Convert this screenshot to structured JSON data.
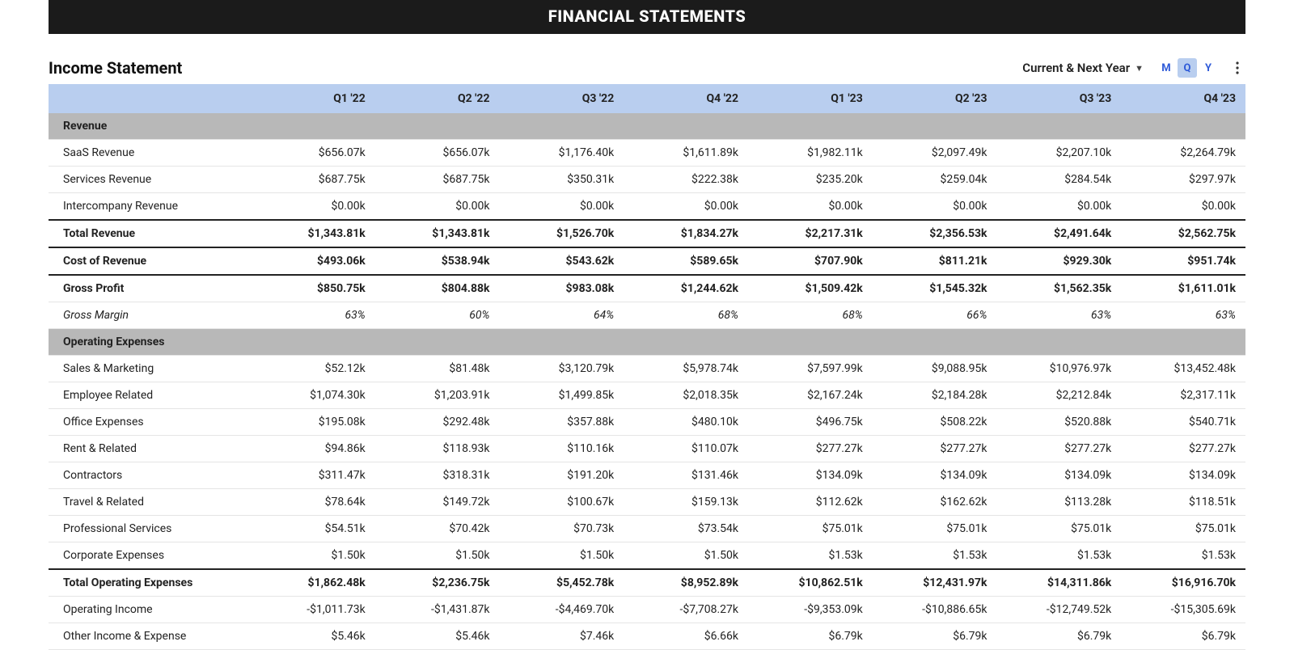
{
  "banner": {
    "title": "FINANCIAL STATEMENTS"
  },
  "header": {
    "title": "Income Statement",
    "range_label": "Current & Next Year",
    "periods": {
      "m": "M",
      "q": "Q",
      "y": "Y",
      "active": "q"
    }
  },
  "columns": [
    "Q1 '22",
    "Q2 '22",
    "Q3 '22",
    "Q4 '22",
    "Q1 '23",
    "Q2 '23",
    "Q3 '23",
    "Q4 '23"
  ],
  "rows": [
    {
      "type": "section",
      "label": "Revenue"
    },
    {
      "type": "detail",
      "label": "SaaS Revenue",
      "values": [
        "$656.07k",
        "$656.07k",
        "$1,176.40k",
        "$1,611.89k",
        "$1,982.11k",
        "$2,097.49k",
        "$2,207.10k",
        "$2,264.79k"
      ]
    },
    {
      "type": "detail",
      "label": "Services Revenue",
      "values": [
        "$687.75k",
        "$687.75k",
        "$350.31k",
        "$222.38k",
        "$235.20k",
        "$259.04k",
        "$284.54k",
        "$297.97k"
      ]
    },
    {
      "type": "detail",
      "label": "Intercompany Revenue",
      "values": [
        "$0.00k",
        "$0.00k",
        "$0.00k",
        "$0.00k",
        "$0.00k",
        "$0.00k",
        "$0.00k",
        "$0.00k"
      ]
    },
    {
      "type": "bold toprule",
      "label": "Total Revenue",
      "values": [
        "$1,343.81k",
        "$1,343.81k",
        "$1,526.70k",
        "$1,834.27k",
        "$2,217.31k",
        "$2,356.53k",
        "$2,491.64k",
        "$2,562.75k"
      ]
    },
    {
      "type": "bold toprule",
      "label": "Cost of Revenue",
      "values": [
        "$493.06k",
        "$538.94k",
        "$543.62k",
        "$589.65k",
        "$707.90k",
        "$811.21k",
        "$929.30k",
        "$951.74k"
      ]
    },
    {
      "type": "bold toprule",
      "label": "Gross Profit",
      "values": [
        "$850.75k",
        "$804.88k",
        "$983.08k",
        "$1,244.62k",
        "$1,509.42k",
        "$1,545.32k",
        "$1,562.35k",
        "$1,611.01k"
      ]
    },
    {
      "type": "italic",
      "label": "Gross Margin",
      "values": [
        "63%",
        "60%",
        "64%",
        "68%",
        "68%",
        "66%",
        "63%",
        "63%"
      ]
    },
    {
      "type": "section",
      "label": "Operating Expenses"
    },
    {
      "type": "detail",
      "label": "Sales & Marketing",
      "values": [
        "$52.12k",
        "$81.48k",
        "$3,120.79k",
        "$5,978.74k",
        "$7,597.99k",
        "$9,088.95k",
        "$10,976.97k",
        "$13,452.48k"
      ]
    },
    {
      "type": "detail",
      "label": "Employee Related",
      "values": [
        "$1,074.30k",
        "$1,203.91k",
        "$1,499.85k",
        "$2,018.35k",
        "$2,167.24k",
        "$2,184.28k",
        "$2,212.84k",
        "$2,317.11k"
      ]
    },
    {
      "type": "detail",
      "label": "Office Expenses",
      "values": [
        "$195.08k",
        "$292.48k",
        "$357.88k",
        "$480.10k",
        "$496.75k",
        "$508.22k",
        "$520.88k",
        "$540.71k"
      ]
    },
    {
      "type": "detail",
      "label": "Rent & Related",
      "values": [
        "$94.86k",
        "$118.93k",
        "$110.16k",
        "$110.07k",
        "$277.27k",
        "$277.27k",
        "$277.27k",
        "$277.27k"
      ]
    },
    {
      "type": "detail",
      "label": "Contractors",
      "values": [
        "$311.47k",
        "$318.31k",
        "$191.20k",
        "$131.46k",
        "$134.09k",
        "$134.09k",
        "$134.09k",
        "$134.09k"
      ]
    },
    {
      "type": "detail",
      "label": "Travel & Related",
      "values": [
        "$78.64k",
        "$149.72k",
        "$100.67k",
        "$159.13k",
        "$112.62k",
        "$162.62k",
        "$113.28k",
        "$118.51k"
      ]
    },
    {
      "type": "detail",
      "label": "Professional Services",
      "values": [
        "$54.51k",
        "$70.42k",
        "$70.73k",
        "$73.54k",
        "$75.01k",
        "$75.01k",
        "$75.01k",
        "$75.01k"
      ]
    },
    {
      "type": "detail",
      "label": "Corporate Expenses",
      "values": [
        "$1.50k",
        "$1.50k",
        "$1.50k",
        "$1.50k",
        "$1.53k",
        "$1.53k",
        "$1.53k",
        "$1.53k"
      ]
    },
    {
      "type": "bold toprule",
      "label": "Total Operating Expenses",
      "values": [
        "$1,862.48k",
        "$2,236.75k",
        "$5,452.78k",
        "$8,952.89k",
        "$10,862.51k",
        "$12,431.97k",
        "$14,311.86k",
        "$16,916.70k"
      ]
    },
    {
      "type": "plain-unindent",
      "label": "Operating Income",
      "values": [
        "-$1,011.73k",
        "-$1,431.87k",
        "-$4,469.70k",
        "-$7,708.27k",
        "-$9,353.09k",
        "-$10,886.65k",
        "-$12,749.52k",
        "-$15,305.69k"
      ]
    },
    {
      "type": "plain-unindent bottomrule",
      "label": "Other Income & Expense",
      "values": [
        "$5.46k",
        "$5.46k",
        "$7.46k",
        "$6.66k",
        "$6.79k",
        "$6.79k",
        "$6.79k",
        "$6.79k"
      ]
    }
  ],
  "colors": {
    "banner_bg": "#1b1b1b",
    "header_bg": "#b9ceef",
    "section_bg": "#b8b8b8",
    "accent": "#2f5bd8"
  }
}
